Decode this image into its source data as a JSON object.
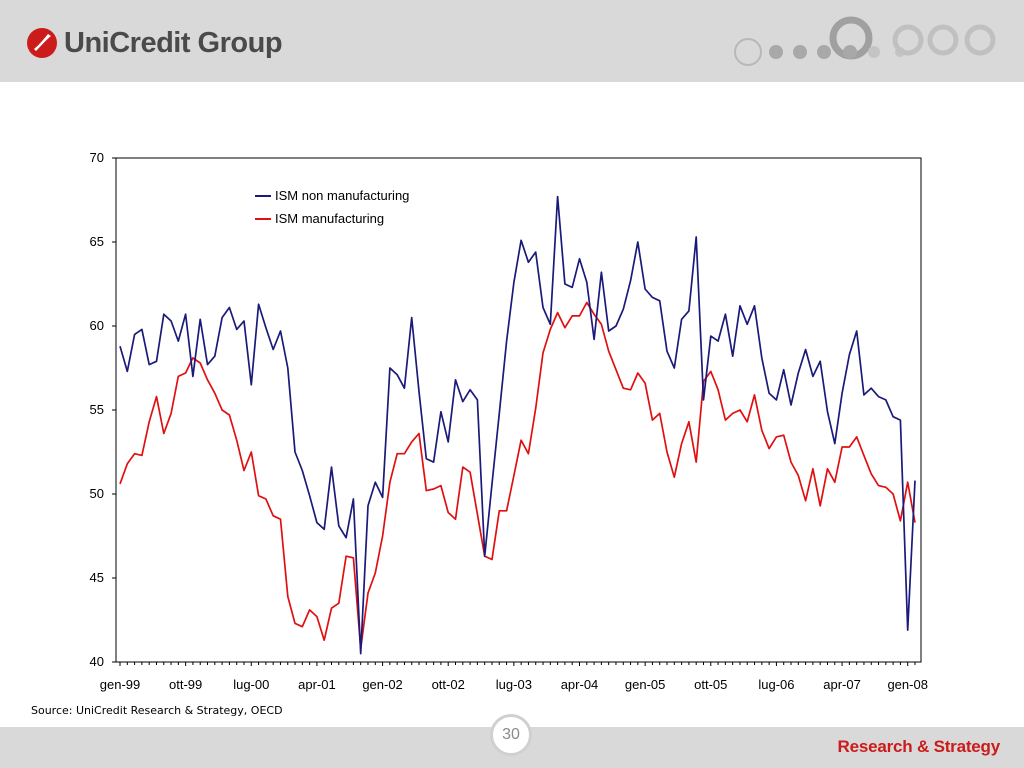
{
  "header": {
    "logo_text": "UniCredit Group",
    "brand_color": "#cc1b1b"
  },
  "footer": {
    "page_number": "30",
    "brand": "Research & Strategy"
  },
  "source_note": "Source: UniCredit Research & Strategy, OECD",
  "chart_data": {
    "type": "line",
    "title": "",
    "xlabel": "",
    "ylabel": "",
    "ylim": [
      40,
      70
    ],
    "yticks": [
      40,
      45,
      50,
      55,
      60,
      65,
      70
    ],
    "xtick_labels": [
      "gen-99",
      "ott-99",
      "lug-00",
      "apr-01",
      "gen-02",
      "ott-02",
      "lug-03",
      "apr-04",
      "gen-05",
      "ott-05",
      "lug-06",
      "apr-07",
      "gen-08"
    ],
    "x_start": "gen-99",
    "x_end": "feb-08",
    "grid": false,
    "legend_position": "top-left inside",
    "series": [
      {
        "name": "ISM non manufacturing",
        "color": "#1a1a7a",
        "values": [
          58.8,
          57.3,
          59.5,
          59.8,
          57.7,
          57.9,
          60.7,
          60.3,
          59.1,
          60.7,
          57.0,
          60.4,
          57.7,
          58.2,
          60.5,
          61.1,
          59.8,
          60.3,
          56.5,
          61.3,
          59.9,
          58.6,
          59.7,
          57.5,
          52.5,
          51.4,
          49.9,
          48.3,
          47.9,
          51.6,
          48.1,
          47.4,
          49.7,
          40.5,
          49.3,
          50.7,
          49.8,
          57.5,
          57.1,
          56.3,
          60.5,
          56.1,
          52.1,
          51.9,
          54.9,
          53.1,
          56.8,
          55.5,
          56.2,
          55.6,
          46.3,
          50.6,
          54.8,
          59.1,
          62.6,
          65.1,
          63.8,
          64.4,
          61.1,
          60.1,
          67.7,
          62.5,
          62.3,
          64.0,
          62.6,
          59.2,
          63.2,
          59.7,
          60.0,
          61.0,
          62.7,
          65.0,
          62.2,
          61.7,
          61.5,
          58.5,
          57.5,
          60.4,
          60.9,
          65.3,
          55.6,
          59.4,
          59.1,
          60.7,
          58.2,
          61.2,
          60.1,
          61.2,
          58.1,
          56.0,
          55.6,
          57.4,
          55.3,
          57.2,
          58.6,
          57.0,
          57.9,
          54.9,
          53.0,
          56.0,
          58.3,
          59.7,
          55.9,
          56.3,
          55.8,
          55.6,
          54.6,
          54.4,
          41.9,
          50.8
        ],
        "rendered_line_color": "#1a1a7a"
      },
      {
        "name": "ISM manufacturing",
        "color": "#e01010",
        "values": [
          50.6,
          51.8,
          52.4,
          52.3,
          54.3,
          55.8,
          53.6,
          54.8,
          57.0,
          57.2,
          58.1,
          57.8,
          56.8,
          56.0,
          55.0,
          54.7,
          53.2,
          51.4,
          52.5,
          49.9,
          49.7,
          48.7,
          48.5,
          43.9,
          42.3,
          42.1,
          43.1,
          42.7,
          41.3,
          43.2,
          43.5,
          46.3,
          46.2,
          40.8,
          44.1,
          45.3,
          47.5,
          50.7,
          52.4,
          52.4,
          53.1,
          53.6,
          50.2,
          50.3,
          50.5,
          48.9,
          48.5,
          51.6,
          51.3,
          48.8,
          46.3,
          46.1,
          49.0,
          49.0,
          51.1,
          53.2,
          52.4,
          55.1,
          58.4,
          59.8,
          60.8,
          59.9,
          60.6,
          60.6,
          61.4,
          60.7,
          60.1,
          58.5,
          57.4,
          56.3,
          56.2,
          57.2,
          56.6,
          54.4,
          54.8,
          52.5,
          51.0,
          53.0,
          54.3,
          51.9,
          56.7,
          57.3,
          56.2,
          54.4,
          54.8,
          55.0,
          54.3,
          55.9,
          53.8,
          52.7,
          53.4,
          53.5,
          51.9,
          51.1,
          49.6,
          51.5,
          49.3,
          51.5,
          50.7,
          52.8,
          52.8,
          53.4,
          52.3,
          51.2,
          50.5,
          50.4,
          50.0,
          48.4,
          50.7,
          48.3
        ]
      }
    ]
  }
}
